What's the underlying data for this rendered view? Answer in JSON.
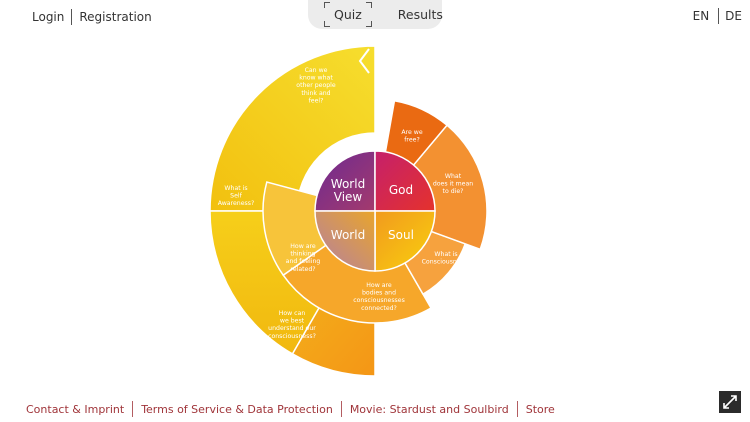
{
  "nav": {
    "login": "Login",
    "registration": "Registration"
  },
  "tabs": {
    "quiz": "Quiz",
    "results": "Results"
  },
  "lang": {
    "en": "EN",
    "de": "DE"
  },
  "wheel": {
    "center": {
      "world_view": [
        "World",
        "View"
      ],
      "god": "God",
      "world": "World",
      "soul": "Soul"
    },
    "questions": {
      "q_others": [
        "Can we",
        "know what",
        "other people",
        "think and",
        "feel?"
      ],
      "q_self": [
        "What is",
        "Self",
        "Awareness?"
      ],
      "q_thinking": [
        "How are",
        "thinking",
        "and feeling",
        "related?"
      ],
      "q_understand": [
        "How can",
        "we best",
        "understand our",
        "consciousness?"
      ],
      "q_bodies": [
        "How are",
        "bodies and",
        "consciousnesses",
        "connected?"
      ],
      "q_conscious": [
        "What is",
        "Consciousness?"
      ],
      "q_die": [
        "What",
        "does it mean",
        "to die?"
      ],
      "q_free": [
        "Are we",
        "free?"
      ]
    }
  },
  "footer": {
    "contact": "Contact & Imprint",
    "terms": "Terms of Service & Data Protection",
    "movie": "Movie: Stardust and Soulbird",
    "store": "Store"
  },
  "colors": {
    "accent": "#a0353a",
    "god": "#d8223a",
    "world_view": "#7b2d8c",
    "yellow": "#f4c20d",
    "orange": "#f39131"
  }
}
